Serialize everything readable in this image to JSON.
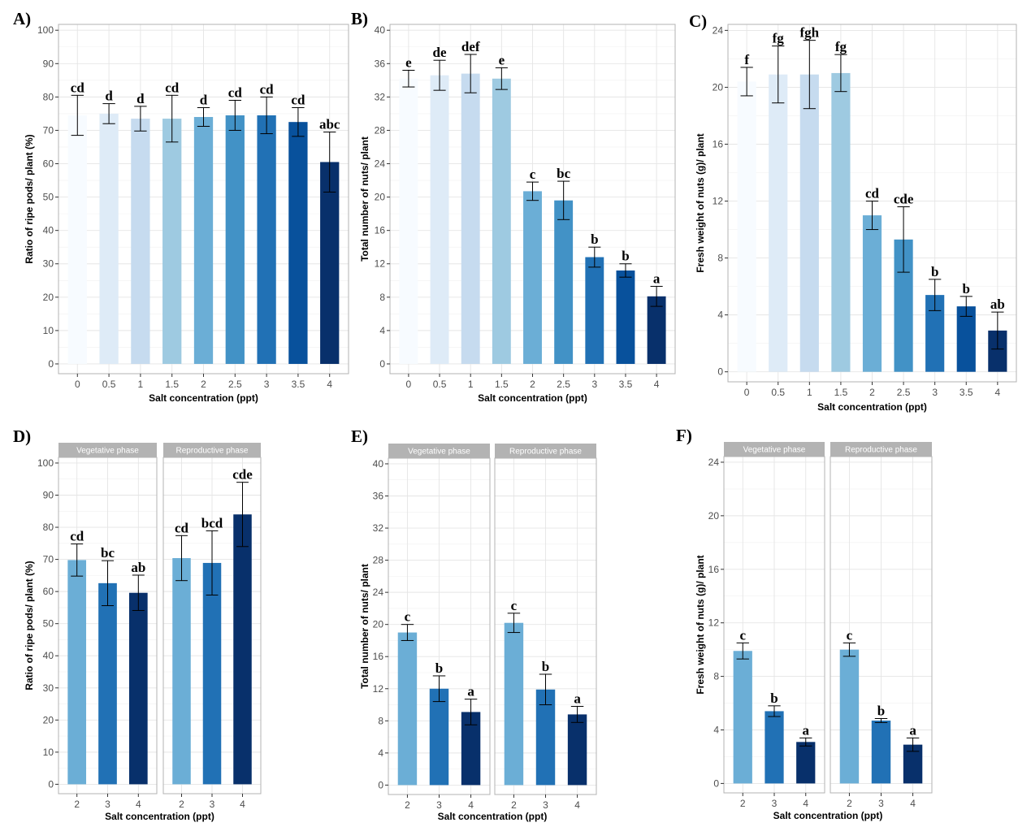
{
  "chart_data": [
    {
      "id": "A",
      "type": "bar",
      "panel_label": "A)",
      "xlabel": "Salt concentration (ppt)",
      "ylabel": "Ratio of ripe pods/ plant (%)",
      "ylim": [
        0,
        100
      ],
      "yticks": [
        0,
        10,
        20,
        30,
        40,
        50,
        60,
        70,
        80,
        90,
        100
      ],
      "grid": true,
      "facets": [
        {
          "strip": "",
          "categories": [
            "0",
            "0.5",
            "1",
            "1.5",
            "2",
            "2.5",
            "3",
            "3.5",
            "4"
          ],
          "values": [
            74.5,
            75,
            73.5,
            73.5,
            74,
            74.5,
            74.5,
            72.5,
            60.5
          ],
          "errors": [
            6,
            3,
            3.7,
            7,
            2.8,
            4.5,
            5.5,
            4.3,
            9
          ],
          "letters": [
            "cd",
            "d",
            "d",
            "cd",
            "d",
            "cd",
            "cd",
            "cd",
            "abc"
          ],
          "colors": [
            "#f7fbff",
            "#deebf7",
            "#c6dbef",
            "#9ecae1",
            "#6baed6",
            "#4292c6",
            "#2171b5",
            "#08519c",
            "#08306b"
          ]
        }
      ]
    },
    {
      "id": "B",
      "type": "bar",
      "panel_label": "B)",
      "xlabel": "Salt concentration (ppt)",
      "ylabel": "Total number of nuts/ plant",
      "ylim": [
        0,
        40
      ],
      "yticks": [
        0,
        4,
        8,
        12,
        16,
        20,
        24,
        28,
        32,
        36,
        40
      ],
      "grid": true,
      "facets": [
        {
          "strip": "",
          "categories": [
            "0",
            "0.5",
            "1",
            "1.5",
            "2",
            "2.5",
            "3",
            "3.5",
            "4"
          ],
          "values": [
            34.2,
            34.6,
            34.8,
            34.2,
            20.7,
            19.6,
            12.8,
            11.2,
            8.1
          ],
          "errors": [
            1,
            1.8,
            2.3,
            1.3,
            1.1,
            2.3,
            1.2,
            0.8,
            1.2
          ],
          "letters": [
            "e",
            "de",
            "def",
            "e",
            "c",
            "bc",
            "b",
            "b",
            "a"
          ],
          "colors": [
            "#f7fbff",
            "#deebf7",
            "#c6dbef",
            "#9ecae1",
            "#6baed6",
            "#4292c6",
            "#2171b5",
            "#08519c",
            "#08306b"
          ]
        }
      ]
    },
    {
      "id": "C",
      "type": "bar",
      "panel_label": "C)",
      "xlabel": "Salt concentration (ppt)",
      "ylabel": "Fresh weight of nuts (g)/ plant",
      "ylim": [
        0,
        24
      ],
      "yticks": [
        0,
        4,
        8,
        12,
        16,
        20,
        24
      ],
      "grid": true,
      "facets": [
        {
          "strip": "",
          "categories": [
            "0",
            "0.5",
            "1",
            "1.5",
            "2",
            "2.5",
            "3",
            "3.5",
            "4"
          ],
          "values": [
            20.4,
            20.9,
            20.9,
            21,
            11,
            9.3,
            5.4,
            4.6,
            2.9
          ],
          "errors": [
            1,
            2,
            2.4,
            1.3,
            1,
            2.3,
            1.1,
            0.7,
            1.3
          ],
          "letters": [
            "f",
            "fg",
            "fgh",
            "fg",
            "cd",
            "cde",
            "b",
            "b",
            "ab"
          ],
          "colors": [
            "#f7fbff",
            "#deebf7",
            "#c6dbef",
            "#9ecae1",
            "#6baed6",
            "#4292c6",
            "#2171b5",
            "#08519c",
            "#08306b"
          ]
        }
      ]
    },
    {
      "id": "D",
      "type": "bar",
      "panel_label": "D)",
      "xlabel": "Salt concentration (ppt)",
      "ylabel": "Ratio of ripe pods/ plant (%)",
      "ylim": [
        0,
        100
      ],
      "yticks": [
        0,
        10,
        20,
        30,
        40,
        50,
        60,
        70,
        80,
        90,
        100
      ],
      "grid": true,
      "facets": [
        {
          "strip": "Vegetative phase",
          "categories": [
            "2",
            "3",
            "4"
          ],
          "values": [
            69.8,
            62.6,
            59.6
          ],
          "errors": [
            5,
            7,
            5.5
          ],
          "letters": [
            "cd",
            "bc",
            "ab"
          ],
          "colors": [
            "#6baed6",
            "#2171b5",
            "#08306b"
          ]
        },
        {
          "strip": "Reproductive phase",
          "categories": [
            "2",
            "3",
            "4"
          ],
          "values": [
            70.4,
            68.9,
            84
          ],
          "errors": [
            7,
            10,
            10
          ],
          "letters": [
            "cd",
            "bcd",
            "cde"
          ],
          "colors": [
            "#6baed6",
            "#2171b5",
            "#08306b"
          ]
        }
      ]
    },
    {
      "id": "E",
      "type": "bar",
      "panel_label": "E)",
      "xlabel": "Salt concentration (ppt)",
      "ylabel": "Total number of nuts/ plant",
      "ylim": [
        0,
        40
      ],
      "yticks": [
        0,
        4,
        8,
        12,
        16,
        20,
        24,
        28,
        32,
        36,
        40
      ],
      "grid": true,
      "facets": [
        {
          "strip": "Vegetative phase",
          "categories": [
            "2",
            "3",
            "4"
          ],
          "values": [
            19,
            12,
            9.1
          ],
          "errors": [
            1,
            1.6,
            1.6
          ],
          "letters": [
            "c",
            "b",
            "a"
          ],
          "colors": [
            "#6baed6",
            "#2171b5",
            "#08306b"
          ]
        },
        {
          "strip": "Reproductive phase",
          "categories": [
            "2",
            "3",
            "4"
          ],
          "values": [
            20.2,
            11.9,
            8.8
          ],
          "errors": [
            1.2,
            1.9,
            1
          ],
          "letters": [
            "c",
            "b",
            "a"
          ],
          "colors": [
            "#6baed6",
            "#2171b5",
            "#08306b"
          ]
        }
      ]
    },
    {
      "id": "F",
      "type": "bar",
      "panel_label": "F)",
      "xlabel": "Salt concentration (ppt)",
      "ylabel": "Fresh weight of nuts (g)/ plant",
      "ylim": [
        0,
        24
      ],
      "yticks": [
        0,
        4,
        8,
        12,
        16,
        20,
        24
      ],
      "grid": true,
      "facets": [
        {
          "strip": "Vegetative phase",
          "categories": [
            "2",
            "3",
            "4"
          ],
          "values": [
            9.9,
            5.4,
            3.1
          ],
          "errors": [
            0.6,
            0.4,
            0.3
          ],
          "letters": [
            "c",
            "b",
            "a"
          ],
          "colors": [
            "#6baed6",
            "#2171b5",
            "#08306b"
          ]
        },
        {
          "strip": "Reproductive phase",
          "categories": [
            "2",
            "3",
            "4"
          ],
          "values": [
            10,
            4.7,
            2.9
          ],
          "errors": [
            0.5,
            0.15,
            0.5
          ],
          "letters": [
            "c",
            "b",
            "a"
          ],
          "colors": [
            "#6baed6",
            "#2171b5",
            "#08306b"
          ]
        }
      ]
    }
  ]
}
